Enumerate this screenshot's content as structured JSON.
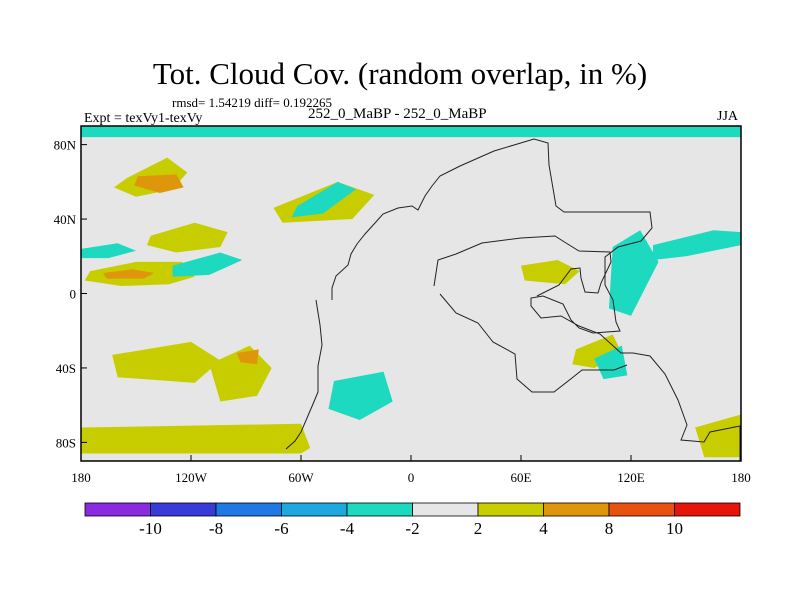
{
  "chart_data": {
    "type": "heatmap",
    "title": "Tot. Cloud Cov. (random overlap, in %)",
    "stats_label": "rmsd= 1.54219 diff= 0.192265",
    "experiment_label": "Expt = texVy1-texVy",
    "case_label": "252_0_MaBP - 252_0_MaBP",
    "season_label": "JJA",
    "x_range": [
      -180,
      180
    ],
    "y_range": [
      -90,
      90
    ],
    "x_ticks": [
      {
        "value": -180,
        "label": "180"
      },
      {
        "value": -120,
        "label": "120W"
      },
      {
        "value": -60,
        "label": "60W"
      },
      {
        "value": 0,
        "label": "0"
      },
      {
        "value": 60,
        "label": "60E"
      },
      {
        "value": 120,
        "label": "120E"
      },
      {
        "value": 180,
        "label": "180"
      }
    ],
    "y_ticks": [
      {
        "value": 80,
        "label": "80N"
      },
      {
        "value": 40,
        "label": "40N"
      },
      {
        "value": 0,
        "label": "0"
      },
      {
        "value": -40,
        "label": "40S"
      },
      {
        "value": -80,
        "label": "80S"
      }
    ],
    "colorbar": {
      "colors": [
        "#8a2be2",
        "#3a3ad8",
        "#1e78e6",
        "#1ea8e0",
        "#1cd9c0",
        "#e6e6e6",
        "#c8cd00",
        "#e0960c",
        "#e8520e",
        "#e6140a"
      ],
      "labels": [
        "-10",
        "-8",
        "-6",
        "-4",
        "-2",
        "2",
        "4",
        "8",
        "10"
      ]
    },
    "regions": [
      {
        "name": "north-pole-band",
        "level": -2,
        "x": [
          -180,
          180,
          180,
          -180
        ],
        "y": [
          90,
          90,
          84,
          84
        ]
      },
      {
        "name": "north-pacific-lobe",
        "level": 2,
        "x": [
          -155,
          -133,
          -122,
          -130,
          -150,
          -162
        ],
        "y": [
          62,
          73,
          65,
          56,
          52,
          57
        ]
      },
      {
        "name": "north-pacific-core",
        "level": 4,
        "x": [
          -149,
          -128,
          -124,
          -137,
          -151
        ],
        "y": [
          63,
          64,
          57,
          54,
          58
        ]
      },
      {
        "name": "mid-pacific-band",
        "level": 2,
        "x": [
          -175,
          -150,
          -125,
          -118,
          -132,
          -158,
          -178
        ],
        "y": [
          12,
          17,
          17,
          9,
          5,
          4,
          7
        ]
      },
      {
        "name": "mid-pacific-core",
        "level": 4,
        "x": [
          -168,
          -152,
          -140,
          -146,
          -166
        ],
        "y": [
          11,
          13,
          11,
          8,
          8
        ]
      },
      {
        "name": "pacific-cyan-west",
        "level": -2,
        "x": [
          -180,
          -160,
          -150,
          -165,
          -180
        ],
        "y": [
          24,
          27,
          23,
          19,
          19
        ]
      },
      {
        "name": "pacific-cyan-east",
        "level": -2,
        "x": [
          -130,
          -104,
          -92,
          -110,
          -130
        ],
        "y": [
          15,
          22,
          18,
          10,
          9
        ]
      },
      {
        "name": "east-pacific-lobe",
        "level": 2,
        "x": [
          -142,
          -118,
          -100,
          -104,
          -128,
          -144
        ],
        "y": [
          31,
          38,
          33,
          25,
          22,
          26
        ]
      },
      {
        "name": "south-pacific-lobe",
        "level": 2,
        "x": [
          -110,
          -88,
          -76,
          -84,
          -104
        ],
        "y": [
          -38,
          -28,
          -40,
          -55,
          -58
        ]
      },
      {
        "name": "south-pacific-core",
        "level": 4,
        "x": [
          -95,
          -83,
          -84,
          -93
        ],
        "y": [
          -32,
          -30,
          -38,
          -37
        ]
      },
      {
        "name": "south-pacific-band",
        "level": 2,
        "x": [
          -163,
          -120,
          -104,
          -118,
          -160
        ],
        "y": [
          -33,
          -26,
          -36,
          -48,
          -45
        ]
      },
      {
        "name": "southern-ocean-band",
        "level": 2,
        "x": [
          -180,
          -60,
          -55,
          -60,
          -180
        ],
        "y": [
          -72,
          -70,
          -83,
          -86,
          -86
        ]
      },
      {
        "name": "south-atlantic-cyan",
        "level": -2,
        "x": [
          -42,
          -15,
          -10,
          -28,
          -45
        ],
        "y": [
          -47,
          -42,
          -58,
          -68,
          -62
        ]
      },
      {
        "name": "north-atlantic-lobe",
        "level": 2,
        "x": [
          -75,
          -40,
          -20,
          -32,
          -70
        ],
        "y": [
          46,
          60,
          53,
          40,
          38
        ]
      },
      {
        "name": "north-atlantic-cyan",
        "level": -2,
        "x": [
          -62,
          -40,
          -30,
          -48,
          -65
        ],
        "y": [
          47,
          60,
          56,
          43,
          41
        ]
      },
      {
        "name": "india-lobe",
        "level": 2,
        "x": [
          60,
          80,
          92,
          84,
          62
        ],
        "y": [
          15,
          18,
          12,
          5,
          7
        ]
      },
      {
        "name": "south-asia-cyan",
        "level": -2,
        "x": [
          110,
          125,
          135,
          120,
          108
        ],
        "y": [
          25,
          34,
          17,
          -12,
          -8
        ]
      },
      {
        "name": "east-asia-band",
        "level": -2,
        "x": [
          132,
          165,
          180,
          180,
          150,
          132
        ],
        "y": [
          26,
          34,
          33,
          26,
          20,
          18
        ]
      },
      {
        "name": "indian-ocean-lobe",
        "level": 2,
        "x": [
          90,
          110,
          115,
          100,
          88
        ],
        "y": [
          -30,
          -22,
          -32,
          -40,
          -38
        ]
      },
      {
        "name": "east-indian-cyan",
        "level": -2,
        "x": [
          100,
          115,
          118,
          105
        ],
        "y": [
          -35,
          -28,
          -44,
          -46
        ]
      },
      {
        "name": "south-africa-lobe",
        "level": 2,
        "x": [
          155,
          180,
          180,
          160
        ],
        "y": [
          -72,
          -65,
          -88,
          -88
        ]
      }
    ]
  }
}
